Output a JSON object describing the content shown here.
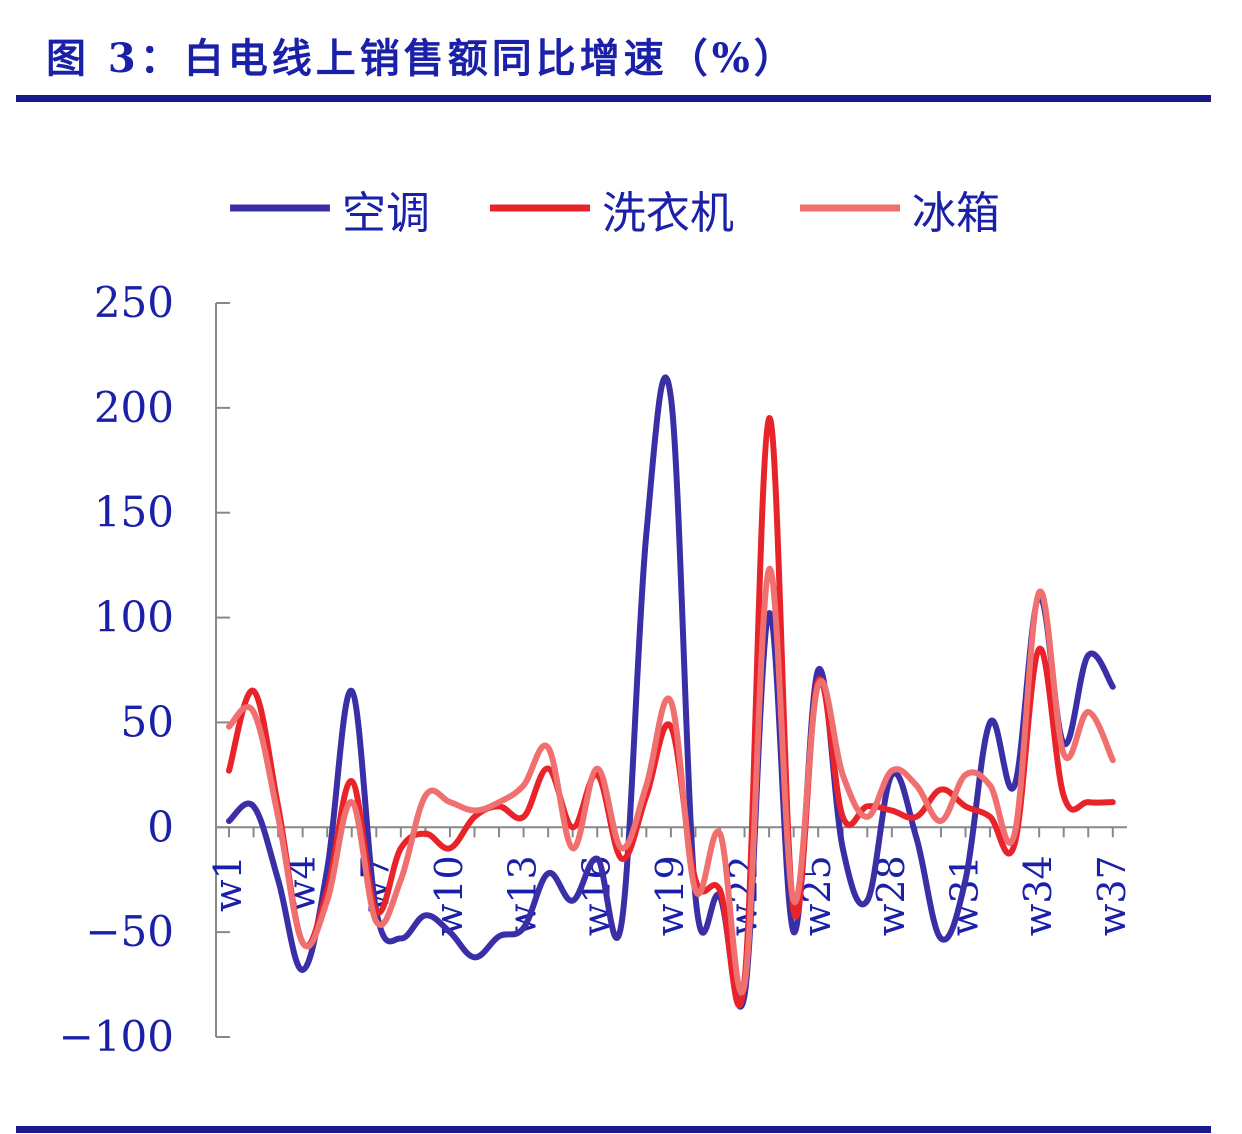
{
  "figure": {
    "title": "图 3：白电线上销售额同比增速（%）"
  },
  "chart_data": {
    "type": "line",
    "x": [
      "w1",
      "w2",
      "w3",
      "w4",
      "w5",
      "w6",
      "w7",
      "w8",
      "w9",
      "w10",
      "w11",
      "w12",
      "w13",
      "w14",
      "w15",
      "w16",
      "w17",
      "w18",
      "w19",
      "w20",
      "w21",
      "w22",
      "w23",
      "w24",
      "w25",
      "w26",
      "w27",
      "w28",
      "w29",
      "w30",
      "w31",
      "w32",
      "w33",
      "w34",
      "w35",
      "w36",
      "w37"
    ],
    "x_tick_labels": [
      "w1",
      "w4",
      "w7",
      "w10",
      "w13",
      "w16",
      "w19",
      "w22",
      "w25",
      "w28",
      "w31",
      "w34",
      "w37"
    ],
    "ylim": [
      -100,
      250
    ],
    "yticks": [
      -100,
      -50,
      0,
      50,
      100,
      150,
      200,
      250
    ],
    "legend_position": "top",
    "grid": false,
    "series": [
      {
        "name": "空调",
        "color": "#3a2fa6",
        "values": [
          3,
          10,
          -25,
          -68,
          -20,
          65,
          -40,
          -53,
          -42,
          -50,
          -62,
          -52,
          -48,
          -22,
          -35,
          -15,
          -45,
          140,
          205,
          -33,
          -33,
          -80,
          102,
          -50,
          75,
          -10,
          -35,
          25,
          -5,
          -53,
          -25,
          50,
          20,
          110,
          40,
          82,
          67
        ]
      },
      {
        "name": "洗衣机",
        "color": "#e8232a",
        "values": [
          27,
          65,
          10,
          -55,
          -30,
          22,
          -40,
          -10,
          -3,
          -10,
          5,
          10,
          5,
          28,
          0,
          25,
          -15,
          15,
          48,
          -25,
          -30,
          -73,
          195,
          -40,
          70,
          5,
          10,
          8,
          5,
          18,
          10,
          5,
          -8,
          85,
          15,
          12,
          12
        ]
      },
      {
        "name": "冰箱",
        "color": "#f07070",
        "values": [
          48,
          55,
          5,
          -55,
          -35,
          12,
          -45,
          -25,
          15,
          12,
          8,
          12,
          20,
          38,
          -10,
          28,
          -10,
          20,
          60,
          -30,
          -3,
          -75,
          123,
          -35,
          68,
          25,
          5,
          27,
          20,
          3,
          25,
          20,
          -3,
          112,
          35,
          55,
          32
        ]
      }
    ]
  }
}
